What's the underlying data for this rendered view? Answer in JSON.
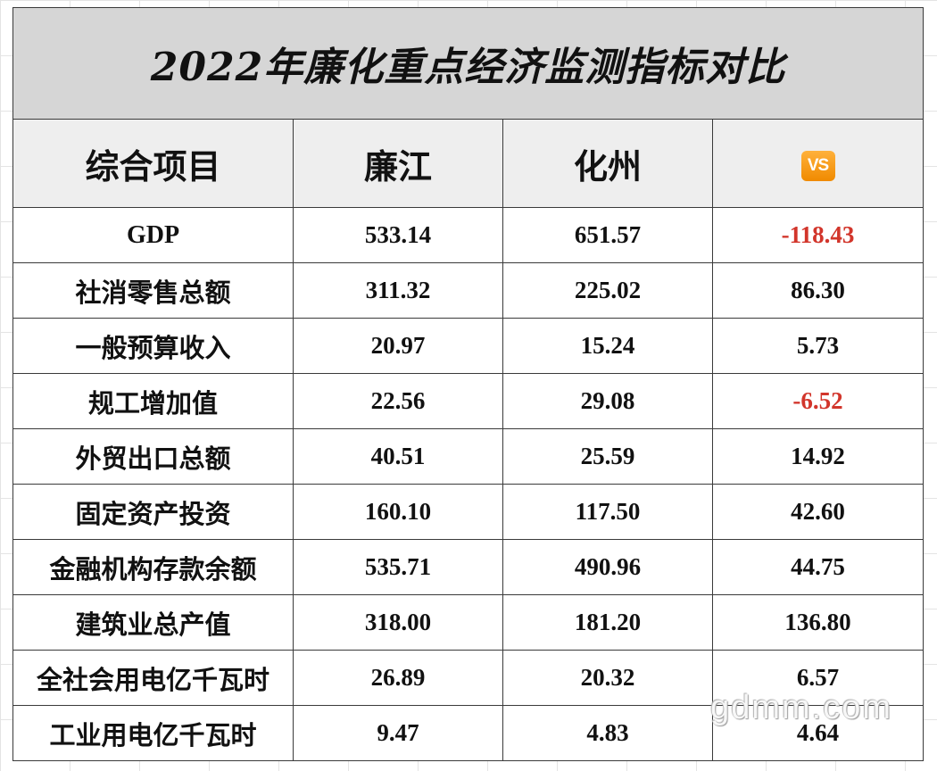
{
  "title": "2022年廉化重点经济监测指标对比",
  "headers": {
    "item": "综合项目",
    "lianjiang": "廉江",
    "huazhou": "化州",
    "vs": "VS"
  },
  "rows": [
    {
      "item": "GDP",
      "lianjiang": "533.14",
      "huazhou": "651.57",
      "diff": "-118.43"
    },
    {
      "item": "社消零售总额",
      "lianjiang": "311.32",
      "huazhou": "225.02",
      "diff": "86.30"
    },
    {
      "item": "一般预算收入",
      "lianjiang": "20.97",
      "huazhou": "15.24",
      "diff": "5.73"
    },
    {
      "item": "规工增加值",
      "lianjiang": "22.56",
      "huazhou": "29.08",
      "diff": "-6.52"
    },
    {
      "item": "外贸出口总额",
      "lianjiang": "40.51",
      "huazhou": "25.59",
      "diff": "14.92"
    },
    {
      "item": "固定资产投资",
      "lianjiang": "160.10",
      "huazhou": "117.50",
      "diff": "42.60"
    },
    {
      "item": "金融机构存款余额",
      "lianjiang": "535.71",
      "huazhou": "490.96",
      "diff": "44.75"
    },
    {
      "item": "建筑业总产值",
      "lianjiang": "318.00",
      "huazhou": "181.20",
      "diff": "136.80"
    },
    {
      "item": "全社会用电亿千瓦时",
      "lianjiang": "26.89",
      "huazhou": "20.32",
      "diff": "6.57"
    },
    {
      "item": "工业用电亿千瓦时",
      "lianjiang": "9.47",
      "huazhou": "4.83",
      "diff": "4.64"
    }
  ],
  "colors": {
    "negative": "#d2352b",
    "title_bg": "#d6d6d6",
    "header_bg": "#eeeeee",
    "vs_badge": "#f59a16"
  },
  "vs_icon": "vs-button-emoji",
  "watermark": "gdmm.com"
}
